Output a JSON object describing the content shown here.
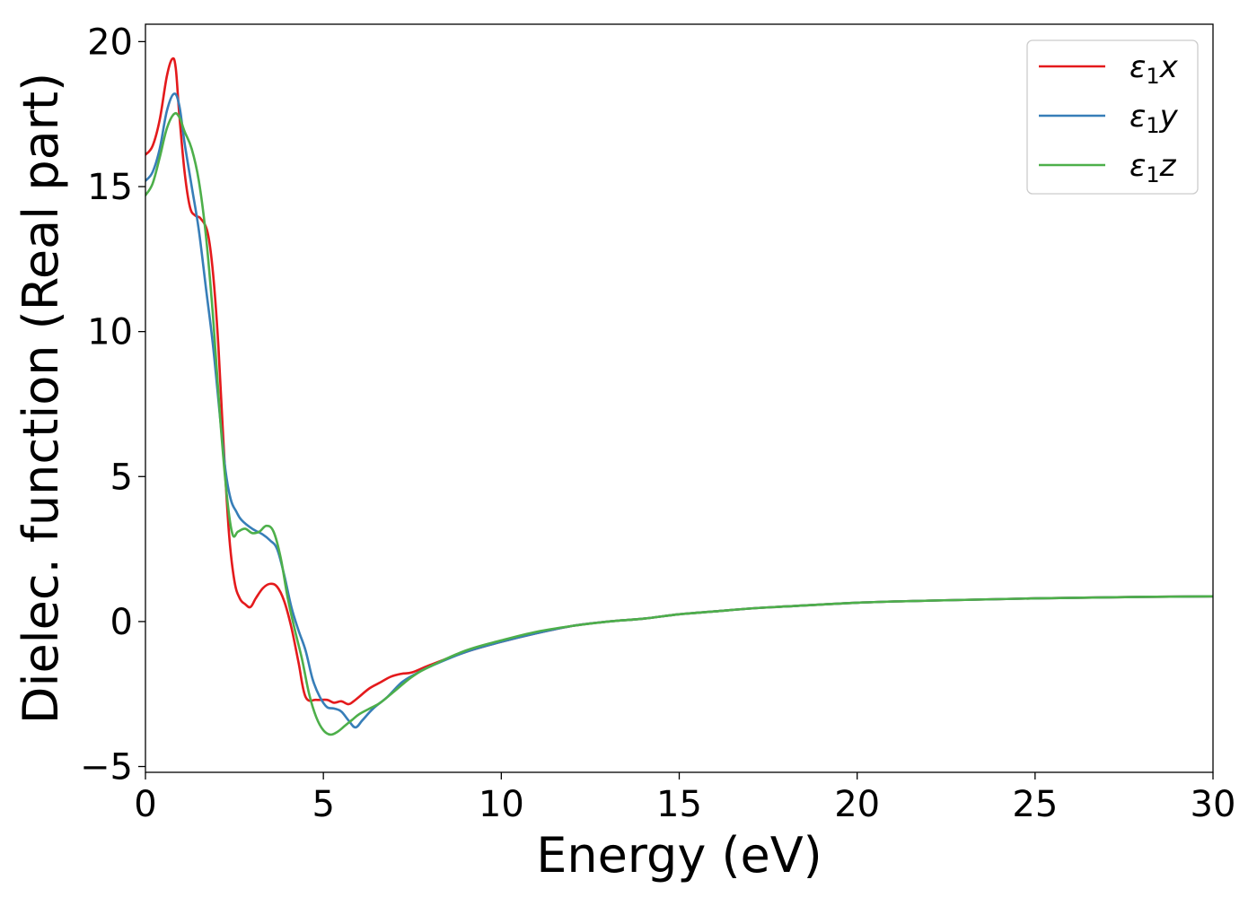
{
  "chart_data": {
    "type": "line",
    "title": "",
    "xlabel": "Energy (eV)",
    "ylabel": "Dielec. function (Real part)",
    "xlim": [
      0,
      30
    ],
    "ylim": [
      -5.2,
      20.6
    ],
    "xticks": [
      0,
      5,
      10,
      15,
      20,
      25,
      30
    ],
    "xtick_labels": [
      "0",
      "5",
      "10",
      "15",
      "20",
      "25",
      "30"
    ],
    "yticks": [
      -5,
      0,
      5,
      10,
      15,
      20
    ],
    "ytick_labels": [
      "−5",
      "0",
      "5",
      "10",
      "15",
      "20"
    ],
    "grid": false,
    "legend_position": "top-right",
    "series": [
      {
        "name": "ε₁x",
        "legend_main": "ε",
        "legend_sub": "1",
        "legend_var": "x",
        "color": "#e41a1c",
        "x": [
          0,
          0.2,
          0.4,
          0.6,
          0.75,
          0.85,
          0.95,
          1.1,
          1.25,
          1.4,
          1.55,
          1.75,
          1.9,
          2.05,
          2.2,
          2.35,
          2.5,
          2.65,
          2.8,
          2.95,
          3.1,
          3.3,
          3.5,
          3.7,
          3.9,
          4.1,
          4.3,
          4.5,
          4.8,
          5.1,
          5.3,
          5.5,
          5.7,
          5.85,
          6.0,
          6.3,
          6.6,
          6.9,
          7.2,
          7.5,
          8.0,
          9.0,
          10.0,
          11.0,
          12.0,
          13.0,
          14.0,
          15.0,
          16.0,
          17.0,
          18.0,
          20.0,
          22.0,
          25.0,
          28.0,
          30.0
        ],
        "y": [
          16.1,
          16.4,
          17.3,
          18.8,
          19.4,
          19.1,
          17.5,
          15.5,
          14.3,
          14.0,
          13.9,
          13.4,
          12.0,
          9.5,
          6.0,
          3.0,
          1.4,
          0.8,
          0.6,
          0.5,
          0.8,
          1.15,
          1.3,
          1.2,
          0.7,
          -0.2,
          -1.4,
          -2.6,
          -2.7,
          -2.7,
          -2.8,
          -2.75,
          -2.85,
          -2.75,
          -2.6,
          -2.3,
          -2.1,
          -1.9,
          -1.8,
          -1.75,
          -1.5,
          -1.05,
          -0.7,
          -0.4,
          -0.15,
          0.0,
          0.1,
          0.25,
          0.35,
          0.45,
          0.52,
          0.65,
          0.72,
          0.8,
          0.85,
          0.87
        ]
      },
      {
        "name": "ε₁y",
        "legend_main": "ε",
        "legend_sub": "1",
        "legend_var": "y",
        "color": "#377eb8",
        "x": [
          0,
          0.2,
          0.4,
          0.6,
          0.8,
          0.95,
          1.1,
          1.3,
          1.5,
          1.7,
          1.9,
          2.1,
          2.25,
          2.4,
          2.55,
          2.7,
          3.0,
          3.3,
          3.5,
          3.7,
          3.9,
          4.1,
          4.3,
          4.5,
          4.7,
          4.9,
          5.1,
          5.3,
          5.5,
          5.7,
          5.9,
          6.1,
          6.4,
          6.8,
          7.2,
          7.6,
          8.0,
          9.0,
          10.0,
          11.0,
          12.0,
          13.0,
          14.0,
          15.0,
          16.0,
          17.0,
          18.0,
          20.0,
          22.0,
          25.0,
          28.0,
          30.0
        ],
        "y": [
          15.2,
          15.5,
          16.3,
          17.6,
          18.2,
          17.8,
          16.5,
          15.0,
          13.5,
          11.5,
          9.5,
          7.0,
          5.2,
          4.2,
          3.8,
          3.5,
          3.2,
          3.0,
          2.8,
          2.5,
          1.6,
          0.5,
          -0.3,
          -1.0,
          -2.0,
          -2.6,
          -2.95,
          -3.0,
          -3.1,
          -3.4,
          -3.65,
          -3.4,
          -3.0,
          -2.6,
          -2.1,
          -1.8,
          -1.55,
          -1.05,
          -0.7,
          -0.4,
          -0.15,
          0.0,
          0.1,
          0.25,
          0.35,
          0.45,
          0.52,
          0.65,
          0.72,
          0.8,
          0.85,
          0.87
        ]
      },
      {
        "name": "ε₁z",
        "legend_main": "ε",
        "legend_sub": "1",
        "legend_var": "z",
        "color": "#4daf4a",
        "x": [
          0,
          0.2,
          0.4,
          0.6,
          0.8,
          0.95,
          1.1,
          1.3,
          1.5,
          1.7,
          1.9,
          2.1,
          2.3,
          2.45,
          2.6,
          2.8,
          3.0,
          3.2,
          3.4,
          3.6,
          3.8,
          4.0,
          4.2,
          4.4,
          4.6,
          4.8,
          5.0,
          5.2,
          5.4,
          5.6,
          5.8,
          6.0,
          6.3,
          6.6,
          7.0,
          7.5,
          8.0,
          9.0,
          10.0,
          11.0,
          12.0,
          13.0,
          14.0,
          15.0,
          16.0,
          17.0,
          18.0,
          20.0,
          22.0,
          25.0,
          28.0,
          30.0
        ],
        "y": [
          14.7,
          15.1,
          16.0,
          17.0,
          17.5,
          17.4,
          16.9,
          16.3,
          15.2,
          13.3,
          10.5,
          7.0,
          4.2,
          3.0,
          3.1,
          3.2,
          3.05,
          3.1,
          3.3,
          3.1,
          2.2,
          0.8,
          -0.3,
          -1.3,
          -2.5,
          -3.3,
          -3.75,
          -3.9,
          -3.8,
          -3.6,
          -3.4,
          -3.2,
          -3.0,
          -2.8,
          -2.4,
          -1.9,
          -1.55,
          -1.0,
          -0.65,
          -0.35,
          -0.15,
          0.0,
          0.1,
          0.25,
          0.35,
          0.45,
          0.52,
          0.65,
          0.72,
          0.8,
          0.85,
          0.87
        ]
      }
    ]
  }
}
